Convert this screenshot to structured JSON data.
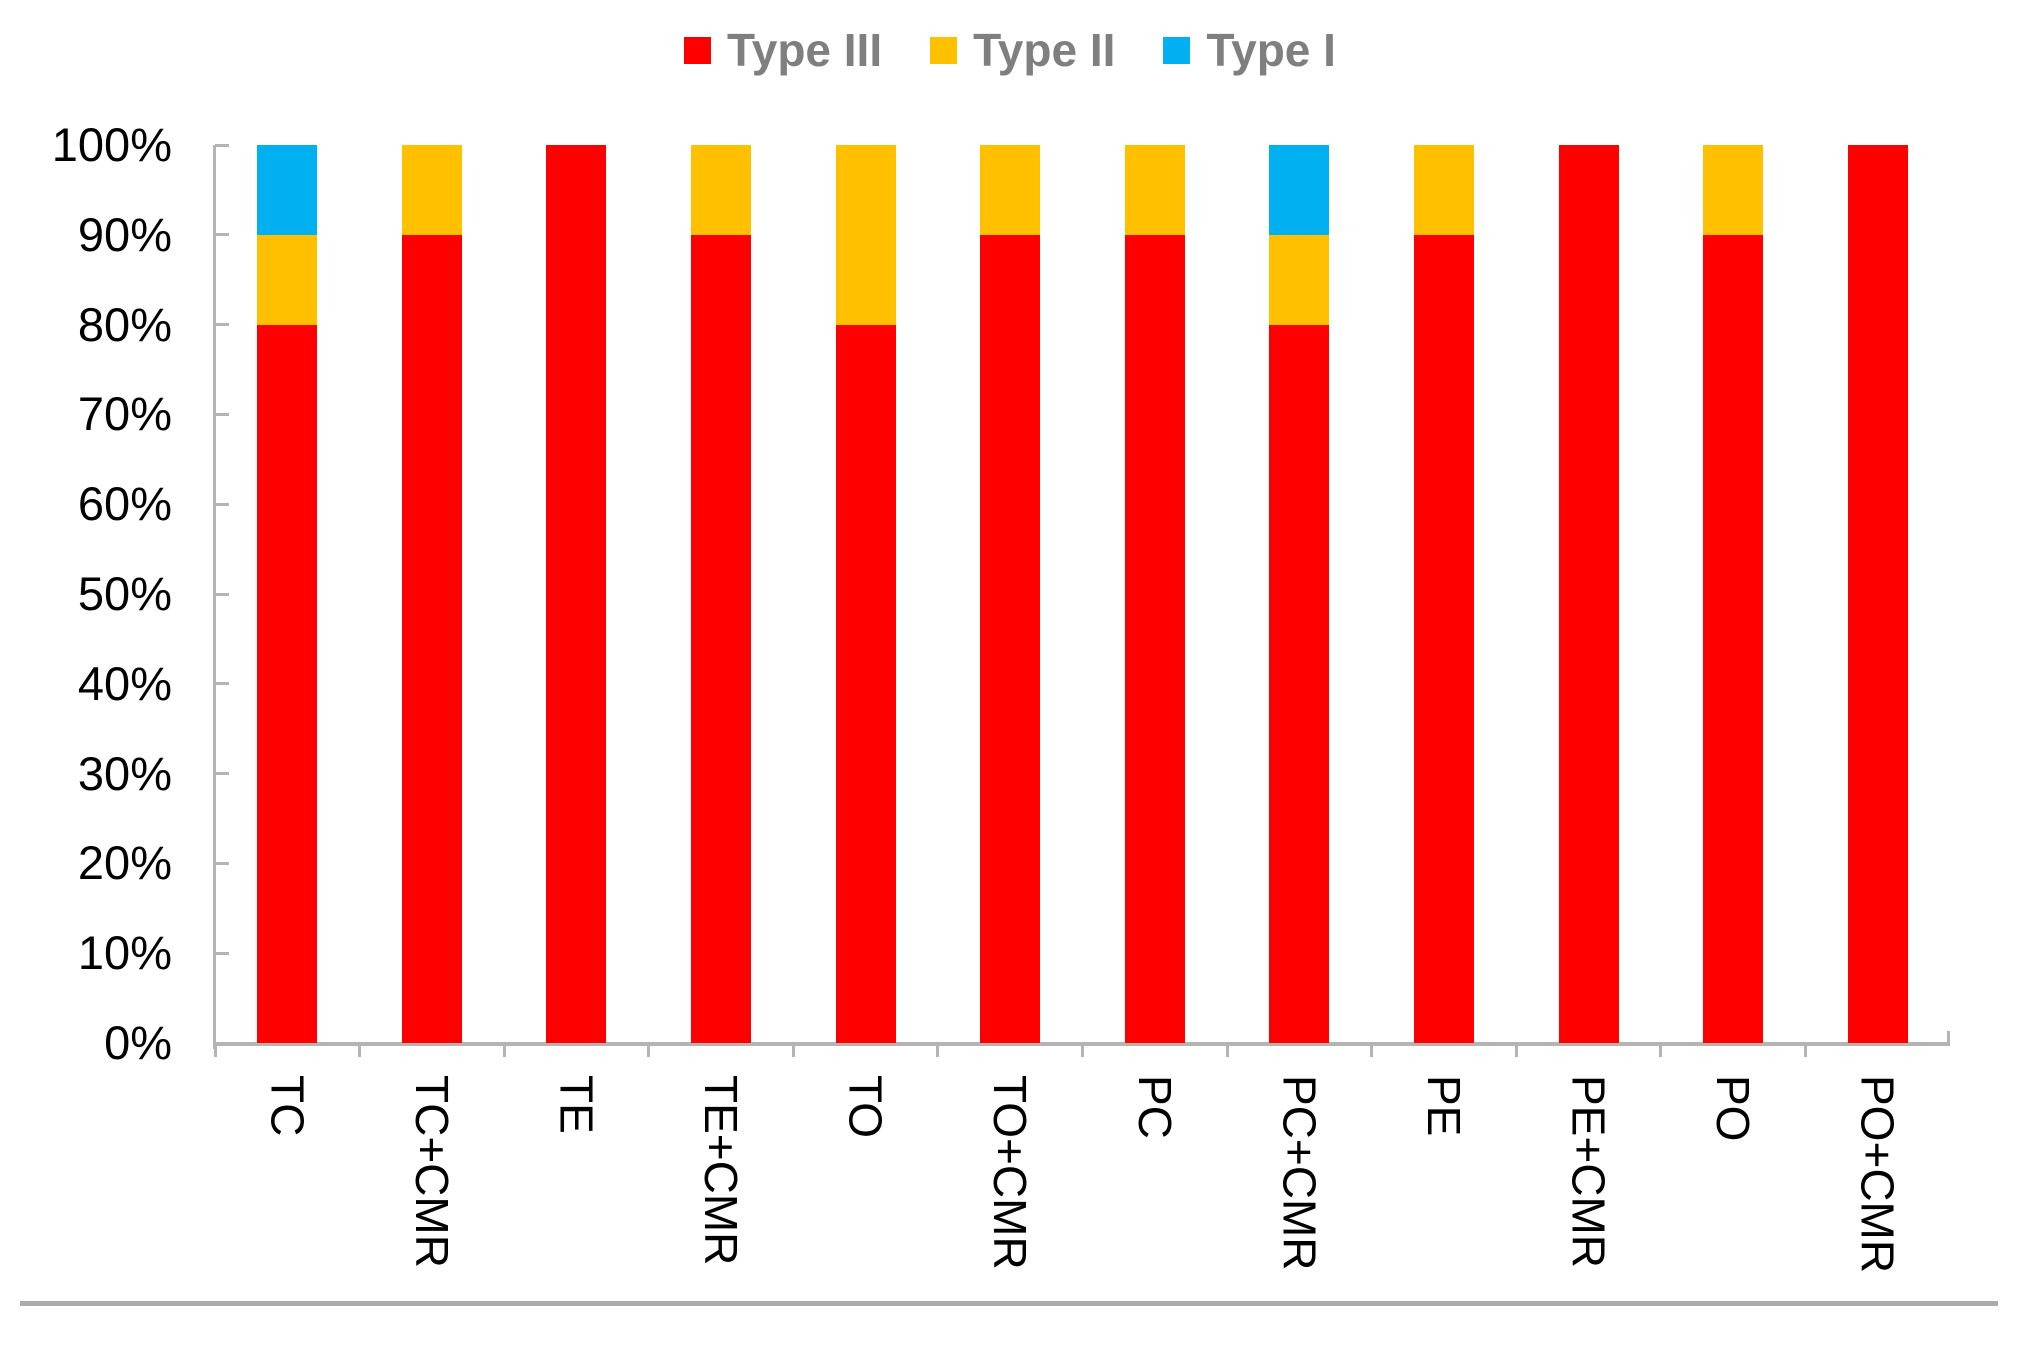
{
  "chart_data": {
    "type": "bar",
    "subtype": "stacked-100-percent-column",
    "title": "",
    "xlabel": "",
    "ylabel": "",
    "grid": false,
    "legend_position": "top",
    "categories": [
      "TC",
      "TC+CMR",
      "TE",
      "TE+CMR",
      "TO",
      "TO+CMR",
      "PC",
      "PC+CMR",
      "PE",
      "PE+CMR",
      "PO",
      "PO+CMR"
    ],
    "series": [
      {
        "name": "Type III",
        "color": "#FF0000",
        "values": [
          80,
          90,
          100,
          90,
          80,
          90,
          90,
          80,
          90,
          100,
          90,
          100
        ]
      },
      {
        "name": "Type II",
        "color": "#FFC000",
        "values": [
          10,
          10,
          0,
          10,
          20,
          10,
          10,
          10,
          10,
          0,
          10,
          0
        ]
      },
      {
        "name": "Type I",
        "color": "#00B0F0",
        "values": [
          10,
          0,
          0,
          0,
          0,
          0,
          0,
          10,
          0,
          0,
          0,
          0
        ]
      }
    ],
    "stack_order_bottom_to_top": [
      "Type III",
      "Type II",
      "Type I"
    ],
    "y_axis": {
      "min": 0,
      "max": 100,
      "step": 10,
      "unit": "%",
      "tick_labels": [
        "0%",
        "10%",
        "20%",
        "30%",
        "40%",
        "50%",
        "60%",
        "70%",
        "80%",
        "90%",
        "100%"
      ]
    },
    "x_axis": {
      "tick_label_rotation_deg": 90
    }
  },
  "style_colors": {
    "bar_red": "#FF0000",
    "bar_gold": "#FFC000",
    "bar_blue": "#00B0F0",
    "legend_text": "#7F7F7F",
    "axis_line": "#B4B4B4",
    "tick_label_text": "#000000",
    "bottom_divider": "#ABABAB"
  }
}
